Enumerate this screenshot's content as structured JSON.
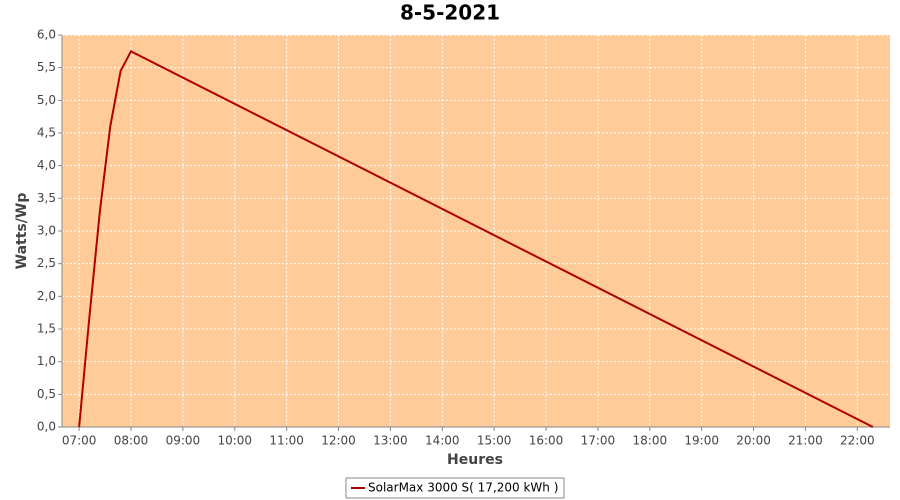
{
  "chart_data": {
    "type": "line",
    "title": "8-5-2021",
    "x_label": "Heures",
    "y_label": "Watts/Wp",
    "x": [
      7.0,
      7.2,
      7.4,
      7.6,
      7.8,
      8.0,
      22.3
    ],
    "series": [
      {
        "name": "SolarMax 3000 S( 17,200 kWh )",
        "color": "#b00000",
        "values": [
          0,
          1.7,
          3.3,
          4.6,
          5.45,
          5.75,
          0
        ]
      }
    ],
    "xlim": [
      6.67,
      22.63
    ],
    "xticks": [
      {
        "value": 7,
        "label": "07:00"
      },
      {
        "value": 8,
        "label": "08:00"
      },
      {
        "value": 9,
        "label": "09:00"
      },
      {
        "value": 10,
        "label": "10:00"
      },
      {
        "value": 11,
        "label": "11:00"
      },
      {
        "value": 12,
        "label": "12:00"
      },
      {
        "value": 13,
        "label": "13:00"
      },
      {
        "value": 14,
        "label": "14:00"
      },
      {
        "value": 15,
        "label": "15:00"
      },
      {
        "value": 16,
        "label": "16:00"
      },
      {
        "value": 17,
        "label": "17:00"
      },
      {
        "value": 18,
        "label": "18:00"
      },
      {
        "value": 19,
        "label": "19:00"
      },
      {
        "value": 20,
        "label": "20:00"
      },
      {
        "value": 21,
        "label": "21:00"
      },
      {
        "value": 22,
        "label": "22:00"
      }
    ],
    "ylim": [
      0,
      6
    ],
    "yticks": [
      {
        "value": 0,
        "label": "0,0"
      },
      {
        "value": 0.5,
        "label": "0,5"
      },
      {
        "value": 1,
        "label": "1,0"
      },
      {
        "value": 1.5,
        "label": "1,5"
      },
      {
        "value": 2,
        "label": "2,0"
      },
      {
        "value": 2.5,
        "label": "2,5"
      },
      {
        "value": 3,
        "label": "3,0"
      },
      {
        "value": 3.5,
        "label": "3,5"
      },
      {
        "value": 4,
        "label": "4,0"
      },
      {
        "value": 4.5,
        "label": "4,5"
      },
      {
        "value": 5,
        "label": "5,0"
      },
      {
        "value": 5.5,
        "label": "5,5"
      },
      {
        "value": 6,
        "label": "6,0"
      }
    ],
    "grid": true,
    "plot_background": "#ffcc99",
    "legend": "bottom"
  }
}
